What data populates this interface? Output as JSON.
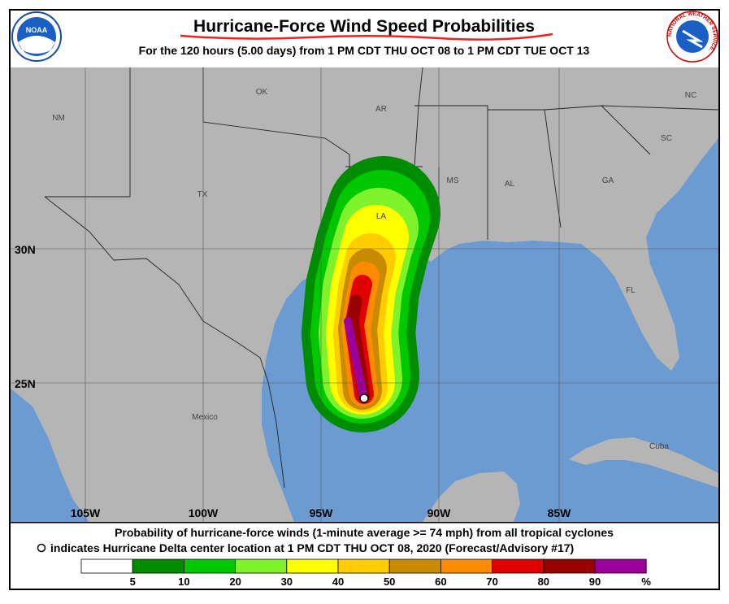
{
  "header": {
    "title": "Hurricane-Force Wind Speed Probabilities",
    "subtitle": "For the 120 hours (5.00 days) from 1 PM CDT THU OCT 08 to 1 PM CDT TUE OCT 13",
    "left_logo": "NOAA",
    "right_logo": "NATIONAL WEATHER SERVICE"
  },
  "map": {
    "regions": [
      "NM",
      "OK",
      "AR",
      "TX",
      "MS",
      "AL",
      "GA",
      "SC",
      "NC",
      "LA",
      "FL",
      "Mexico",
      "Cuba"
    ],
    "latitudes": [
      "30N",
      "25N"
    ],
    "longitudes": [
      "105W",
      "100W",
      "95W",
      "90W",
      "85W"
    ]
  },
  "footer": {
    "line1": "Probability of hurricane-force winds (1-minute average >= 74 mph) from all tropical cyclones",
    "line2": "indicates Hurricane Delta center location at 1 PM CDT THU OCT 08, 2020 (Forecast/Advisory #17)"
  },
  "legend": {
    "labels": [
      "5",
      "10",
      "20",
      "30",
      "40",
      "50",
      "60",
      "70",
      "80",
      "90"
    ],
    "unit": "%",
    "colors": [
      "#ffffff",
      "#008c00",
      "#00c800",
      "#7ef22a",
      "#ffff00",
      "#ffcc00",
      "#c88a00",
      "#ff8c00",
      "#e00000",
      "#990000",
      "#9a009a"
    ]
  }
}
